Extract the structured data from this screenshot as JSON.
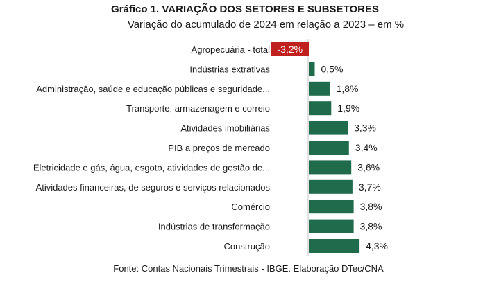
{
  "chart_data": {
    "type": "bar",
    "orientation": "horizontal",
    "title": "Gráfico 1. VARIAÇÃO DOS SETORES E SUBSETORES",
    "subtitle": "Variação do acumulado de 2024 em relação a 2023 – em %",
    "source": "Fonte: Contas Nacionais Trimestrais - IBGE. Elaboração DTec/CNA",
    "xlabel": "",
    "ylabel": "",
    "unit": "%",
    "grid": false,
    "legend": "none",
    "categories": [
      "Agropecuária - total",
      "Indústrias extrativas",
      "Administração, saúde e educação públicas e seguridade...",
      "Transporte, armazenagem e correio",
      "Atividades imobiliárias",
      "PIB a preços de mercado",
      "Eletricidade e gás, água, esgoto, atividades de gestão de...",
      "Atividades financeiras, de seguros e serviços relacionados",
      "Comércio",
      "Indústrias de transformação",
      "Construção"
    ],
    "values": [
      -3.2,
      0.5,
      1.8,
      1.9,
      3.3,
      3.4,
      3.6,
      3.7,
      3.8,
      3.8,
      4.3
    ],
    "labels": [
      "-3,2%",
      "0,5%",
      "1,8%",
      "1,9%",
      "3,3%",
      "3,4%",
      "3,6%",
      "3,7%",
      "3,8%",
      "3,8%",
      "4,3%"
    ],
    "colors": {
      "positive": "#1f6b4c",
      "negative": "#c0201e",
      "axis": "#d9d9d9"
    }
  }
}
